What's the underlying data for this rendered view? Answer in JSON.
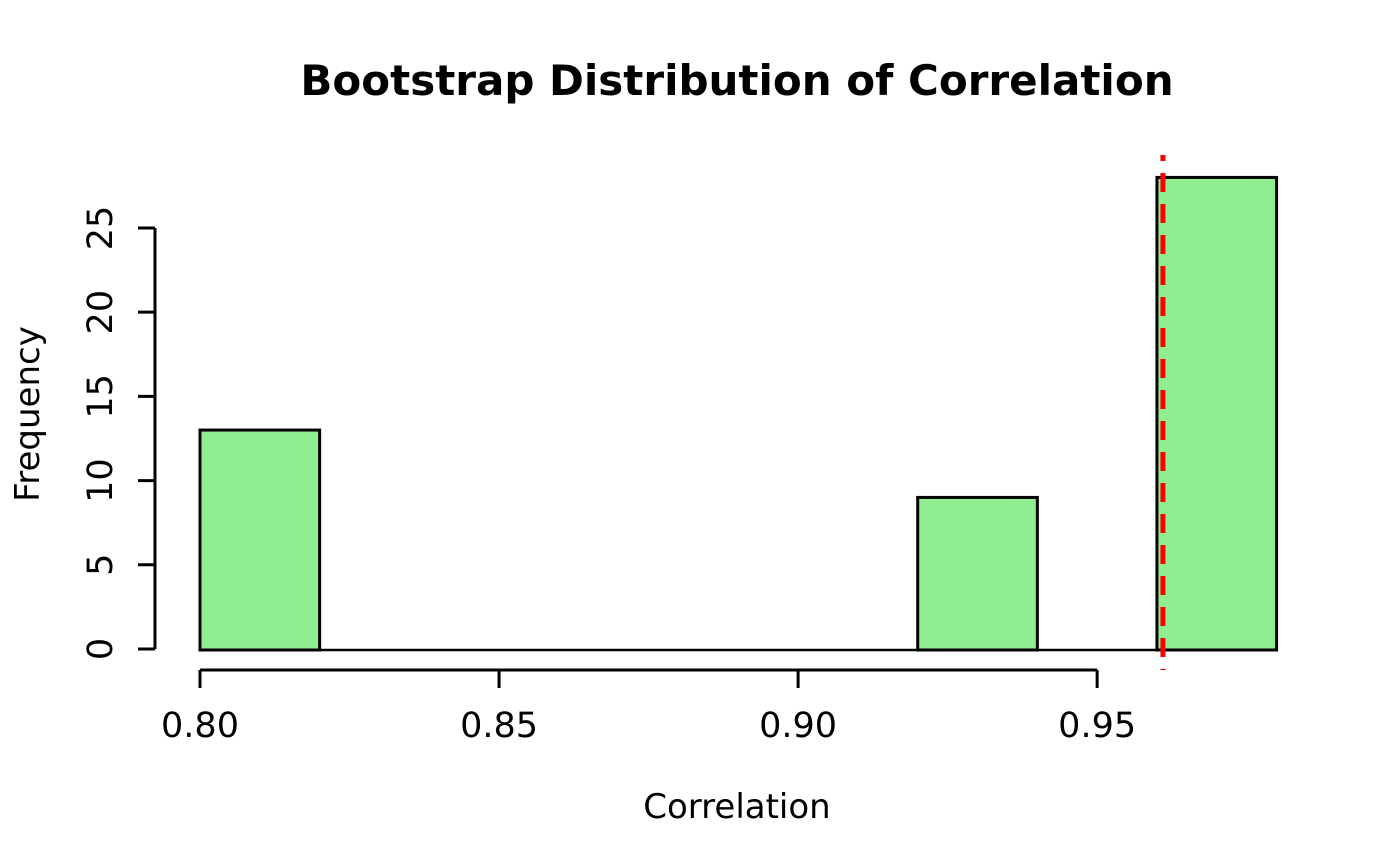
{
  "chart_data": {
    "type": "bar",
    "subtype": "histogram",
    "title": "Bootstrap Distribution of Correlation",
    "xlabel": "Correlation",
    "ylabel": "Frequency",
    "bins": [
      {
        "start": 0.8,
        "end": 0.82,
        "count": 13
      },
      {
        "start": 0.82,
        "end": 0.84,
        "count": 0
      },
      {
        "start": 0.84,
        "end": 0.86,
        "count": 0
      },
      {
        "start": 0.86,
        "end": 0.88,
        "count": 0
      },
      {
        "start": 0.88,
        "end": 0.9,
        "count": 0
      },
      {
        "start": 0.9,
        "end": 0.92,
        "count": 0
      },
      {
        "start": 0.92,
        "end": 0.94,
        "count": 9
      },
      {
        "start": 0.94,
        "end": 0.96,
        "count": 0
      },
      {
        "start": 0.96,
        "end": 0.98,
        "count": 28
      }
    ],
    "x_ticks": [
      {
        "value": 0.8,
        "label": "0.80"
      },
      {
        "value": 0.85,
        "label": "0.85"
      },
      {
        "value": 0.9,
        "label": "0.90"
      },
      {
        "value": 0.95,
        "label": "0.95"
      }
    ],
    "y_ticks": [
      {
        "value": 0,
        "label": "0"
      },
      {
        "value": 5,
        "label": "5"
      },
      {
        "value": 10,
        "label": "10"
      },
      {
        "value": 15,
        "label": "15"
      },
      {
        "value": 20,
        "label": "20"
      },
      {
        "value": 25,
        "label": "25"
      }
    ],
    "xlim": [
      0.8,
      0.98
    ],
    "ylim": [
      0,
      28
    ],
    "grid": false,
    "legend": null,
    "bar_fill": "#90EE90",
    "bar_stroke": "#000000",
    "vline": {
      "value": 0.961,
      "color": "#FF0000",
      "style": "dashed"
    }
  }
}
